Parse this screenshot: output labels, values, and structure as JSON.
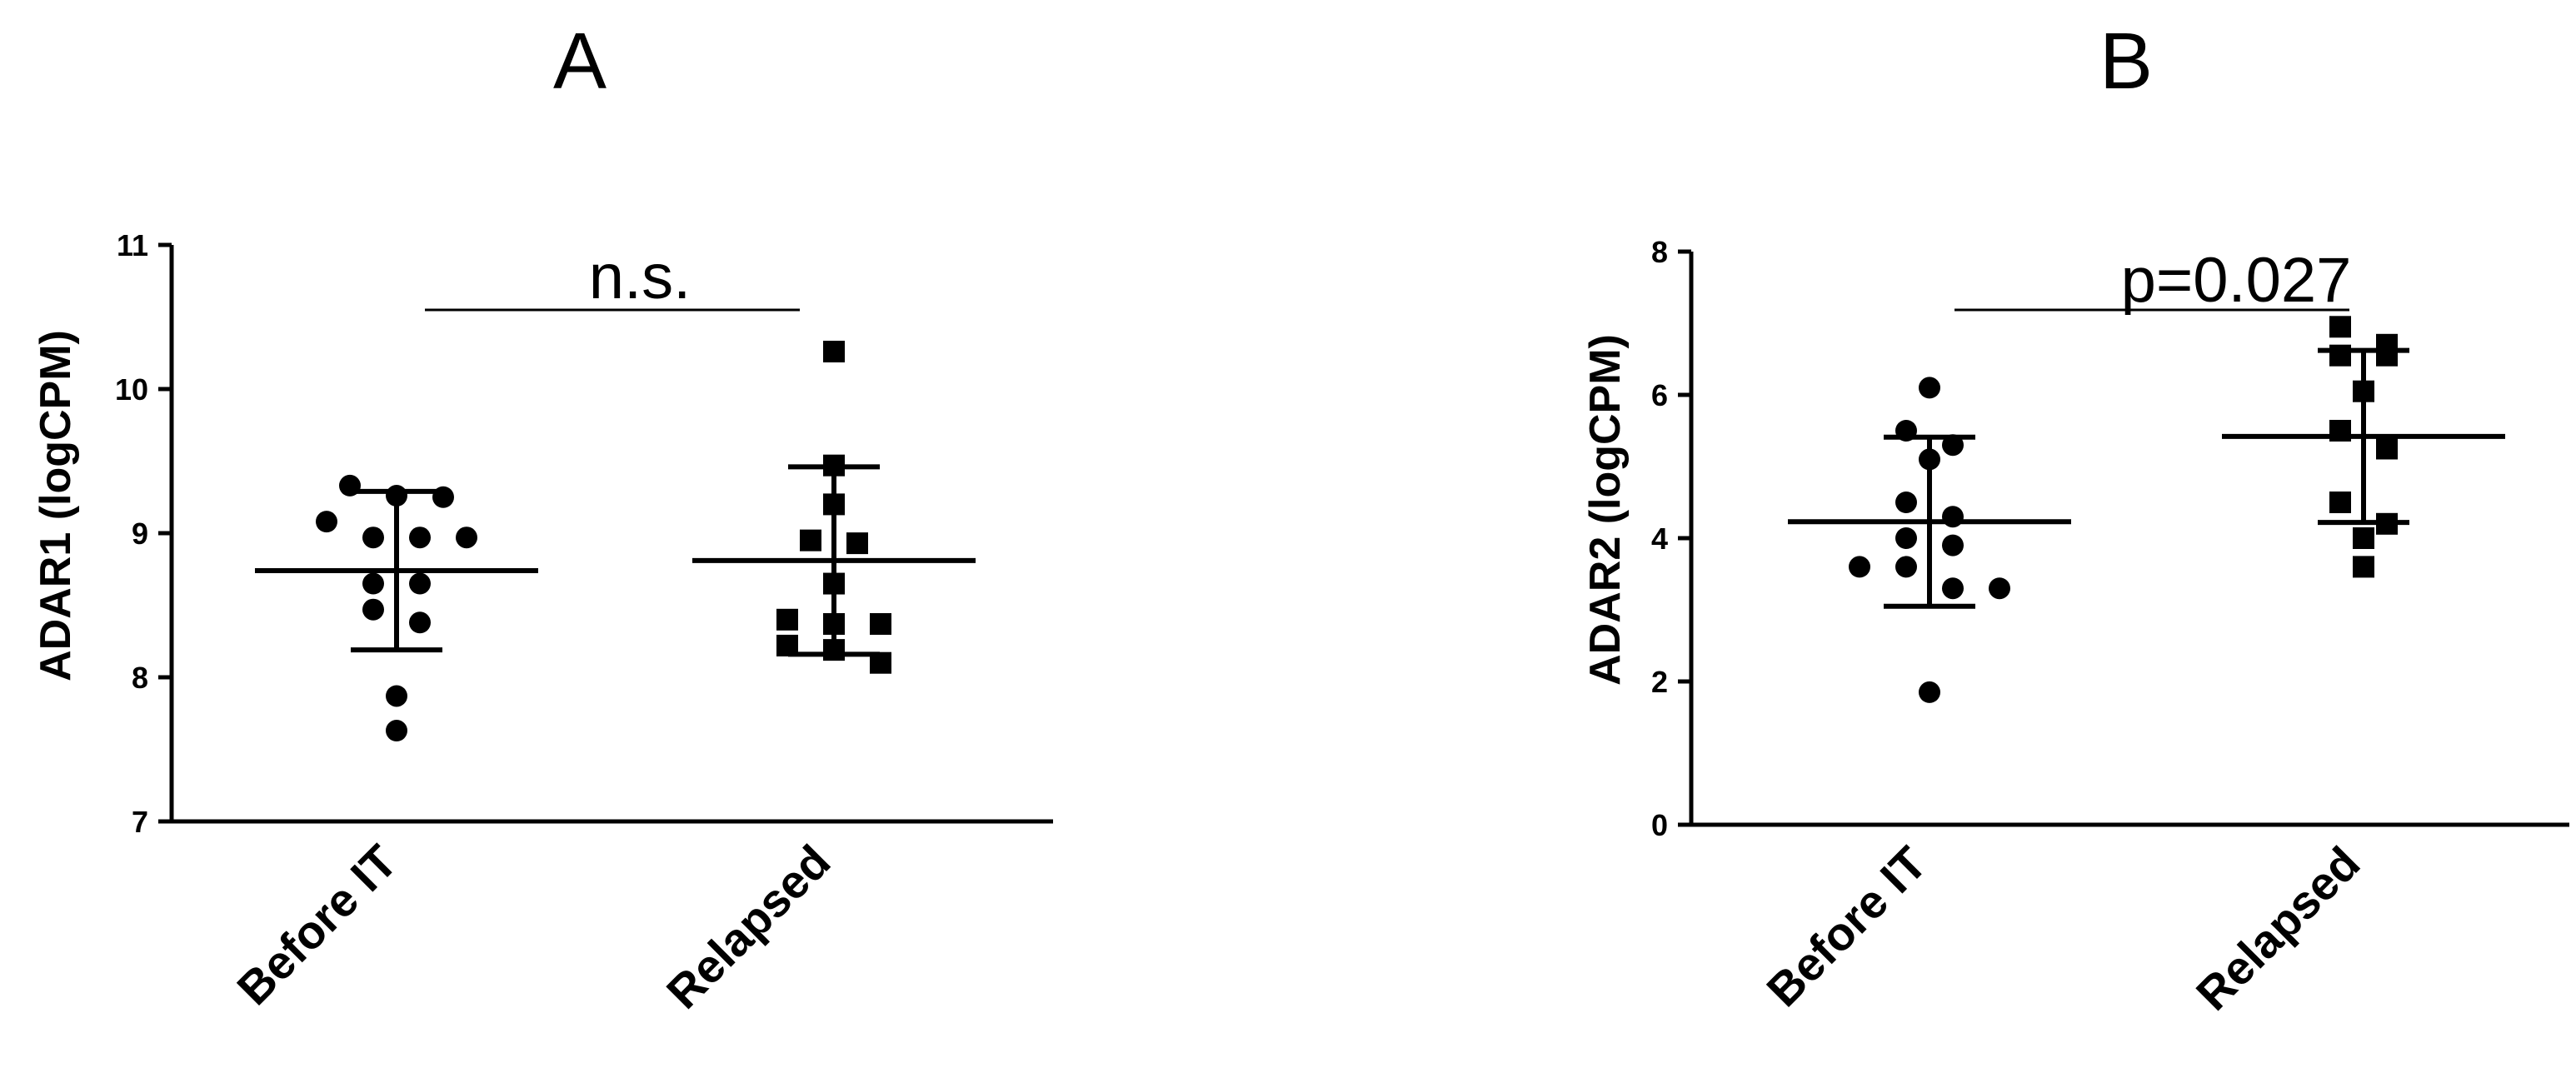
{
  "chart_data": [
    {
      "type": "scatter",
      "panel_label": "A",
      "ylabel": "ADAR1 (logCPM)",
      "ylim": [
        7,
        11
      ],
      "yticks": [
        "7",
        "8",
        "9",
        "10",
        "11"
      ],
      "categories": [
        "Before IT",
        "Relapsed"
      ],
      "annotation": "n.s.",
      "groups": [
        {
          "category": "Before IT",
          "marker": "circle",
          "values": [
            9.33,
            9.26,
            9.25,
            8.97,
            8.97,
            9.08,
            8.97,
            8.65,
            8.65,
            8.47,
            8.38,
            7.87,
            7.63
          ],
          "mean": 8.74,
          "sd": 0.55
        },
        {
          "category": "Relapsed",
          "marker": "square",
          "values": [
            10.26,
            9.47,
            9.2,
            8.95,
            8.93,
            8.65,
            8.4,
            8.37,
            8.37,
            8.22,
            8.19,
            8.1
          ],
          "mean": 8.81,
          "sd": 0.65
        }
      ]
    },
    {
      "type": "scatter",
      "panel_label": "B",
      "ylabel": "ADAR2 (logCPM)",
      "ylim": [
        0,
        8
      ],
      "yticks": [
        "0",
        "2",
        "4",
        "6",
        "8"
      ],
      "categories": [
        "Before IT",
        "Relapsed"
      ],
      "annotation": "p=0.027",
      "groups": [
        {
          "category": "Before IT",
          "marker": "circle",
          "values": [
            6.1,
            5.5,
            5.3,
            5.1,
            4.5,
            4.3,
            4.0,
            3.9,
            3.6,
            3.6,
            3.3,
            3.3,
            1.85
          ],
          "mean": 4.23,
          "sd": 1.18
        },
        {
          "category": "Relapsed",
          "marker": "square",
          "values": [
            6.95,
            6.7,
            6.55,
            6.55,
            6.05,
            5.5,
            5.25,
            4.5,
            4.2,
            4.0,
            3.6
          ],
          "mean": 5.42,
          "sd": 1.2
        }
      ]
    }
  ]
}
